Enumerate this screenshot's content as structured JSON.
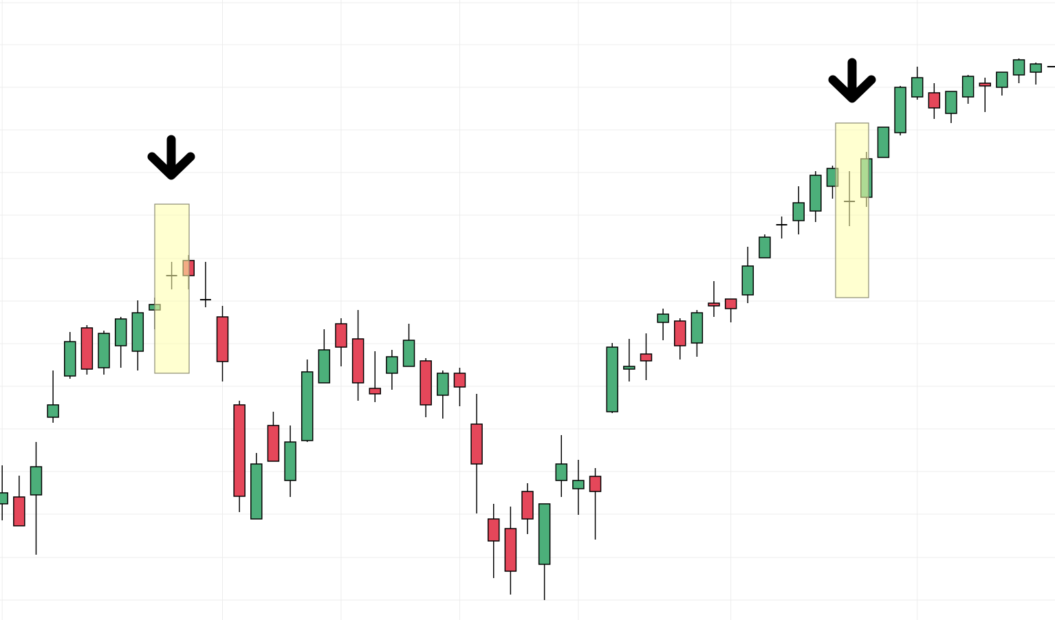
{
  "chart_data": {
    "type": "candlestick",
    "ylim": [
      0,
      902
    ],
    "xlim": [
      -0.13,
      62.13
    ],
    "grid": true,
    "grid_y": [
      898,
      837,
      775,
      713,
      651,
      589,
      526,
      464,
      402,
      340,
      278,
      216,
      154,
      91,
      29
    ],
    "grid_x": [
      0,
      13,
      20,
      27,
      34,
      43,
      54
    ],
    "up_color": "#4caf7a",
    "down_color": "#e5475a",
    "open": [
      169,
      179,
      182,
      295,
      355,
      425,
      367,
      399,
      391,
      451,
      501,
      523,
      466,
      441,
      313,
      147,
      283,
      203,
      261,
      345,
      431,
      409,
      337,
      359,
      369,
      377,
      327,
      359,
      285,
      147,
      133,
      187,
      81,
      203,
      191,
      209,
      303,
      365,
      387,
      433,
      435,
      403,
      461,
      467,
      473,
      527,
      575,
      581,
      595,
      631,
      609,
      615,
      673,
      709,
      761,
      767,
      737,
      761,
      781,
      775,
      793,
      797,
      805
    ],
    "high": [
      225,
      210,
      259,
      363,
      419,
      429,
      421,
      441,
      465,
      469,
      521,
      531,
      521,
      457,
      319,
      243,
      303,
      283,
      379,
      423,
      439,
      451,
      391,
      393,
      431,
      381,
      363,
      367,
      329,
      169,
      165,
      199,
      169,
      269,
      233,
      221,
      403,
      409,
      417,
      453,
      439,
      451,
      493,
      467,
      543,
      561,
      587,
      631,
      653,
      661,
      653,
      681,
      717,
      777,
      805,
      781,
      769,
      793,
      789,
      797,
      817,
      811,
      805
    ],
    "low": [
      145,
      137,
      95,
      287,
      351,
      357,
      357,
      367,
      363,
      423,
      481,
      481,
      455,
      347,
      157,
      147,
      231,
      179,
      259,
      345,
      369,
      319,
      317,
      335,
      369,
      295,
      293,
      311,
      155,
      61,
      37,
      125,
      29,
      179,
      153,
      117,
      301,
      347,
      349,
      407,
      379,
      383,
      441,
      433,
      461,
      527,
      555,
      561,
      579,
      613,
      573,
      601,
      673,
      705,
      757,
      729,
      723,
      751,
      739,
      763,
      781,
      779,
      805
    ],
    "close": [
      185,
      137,
      223,
      313,
      405,
      365,
      417,
      438,
      447,
      459,
      501,
      501,
      466,
      376,
      180,
      227,
      231,
      259,
      361,
      393,
      397,
      345,
      329,
      383,
      407,
      313,
      359,
      339,
      227,
      115,
      71,
      147,
      169,
      227,
      203,
      187,
      397,
      369,
      377,
      445,
      399,
      447,
      457,
      453,
      515,
      557,
      575,
      607,
      647,
      657,
      609,
      671,
      717,
      775,
      789,
      745,
      769,
      791,
      777,
      797,
      815,
      809,
      805
    ]
  }
}
